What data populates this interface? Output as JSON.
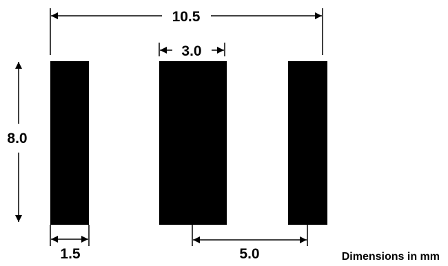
{
  "diagram": {
    "labels": {
      "overall_width": "10.5",
      "pad_height": "8.0",
      "center_pad_width": "3.0",
      "side_pad_width": "1.5",
      "pitch": "5.0"
    },
    "note": "Dimensions in mm",
    "colors": {
      "pad": "#000000",
      "line": "#000000",
      "background": "#ffffff"
    },
    "pads": [
      {
        "name": "left",
        "width_mm": 1.5,
        "height_mm": 8.0
      },
      {
        "name": "center",
        "width_mm": 3.0,
        "height_mm": 8.0
      },
      {
        "name": "right",
        "width_mm": 1.5,
        "height_mm": 8.0
      }
    ]
  }
}
